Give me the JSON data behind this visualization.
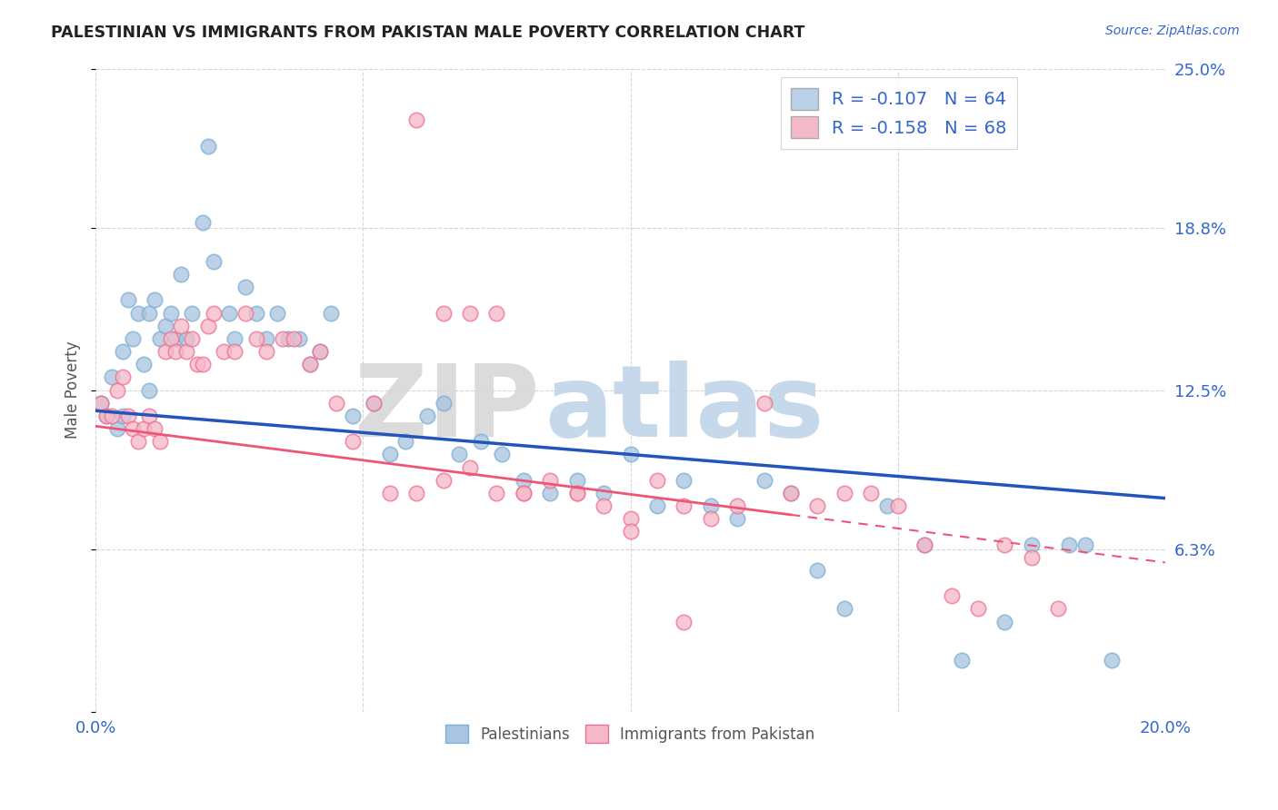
{
  "title": "PALESTINIAN VS IMMIGRANTS FROM PAKISTAN MALE POVERTY CORRELATION CHART",
  "source": "Source: ZipAtlas.com",
  "ylabel": "Male Poverty",
  "xlim": [
    0.0,
    0.2
  ],
  "ylim": [
    0.0,
    0.25
  ],
  "xticks": [
    0.0,
    0.05,
    0.1,
    0.15,
    0.2
  ],
  "xticklabels": [
    "0.0%",
    "",
    "",
    "",
    "20.0%"
  ],
  "yticks": [
    0.0,
    0.063,
    0.125,
    0.188,
    0.25
  ],
  "yticklabels": [
    "",
    "6.3%",
    "12.5%",
    "18.8%",
    "25.0%"
  ],
  "legend_r1": "R = -0.107   N = 64",
  "legend_r2": "R = -0.158   N = 68",
  "series1_color": "#a8c4e0",
  "series2_color": "#f5b8c8",
  "series1_edge": "#7bafd4",
  "series2_edge": "#f07090",
  "trendline1_color": "#2255bb",
  "trendline2_color": "#ee5577",
  "watermark_zip": "ZIP",
  "watermark_atlas": "atlas",
  "legend1_face": "#b8d0e8",
  "legend2_face": "#f5b8c8",
  "palestinians_x": [
    0.001,
    0.002,
    0.003,
    0.004,
    0.005,
    0.005,
    0.006,
    0.007,
    0.008,
    0.009,
    0.01,
    0.01,
    0.011,
    0.012,
    0.013,
    0.014,
    0.015,
    0.016,
    0.017,
    0.018,
    0.02,
    0.021,
    0.022,
    0.025,
    0.026,
    0.028,
    0.03,
    0.032,
    0.034,
    0.036,
    0.038,
    0.04,
    0.042,
    0.044,
    0.048,
    0.052,
    0.055,
    0.058,
    0.062,
    0.065,
    0.068,
    0.072,
    0.076,
    0.08,
    0.085,
    0.09,
    0.095,
    0.1,
    0.105,
    0.11,
    0.115,
    0.12,
    0.125,
    0.13,
    0.135,
    0.14,
    0.148,
    0.155,
    0.162,
    0.17,
    0.175,
    0.182,
    0.185,
    0.19
  ],
  "palestinians_y": [
    0.12,
    0.115,
    0.13,
    0.11,
    0.115,
    0.14,
    0.16,
    0.145,
    0.155,
    0.135,
    0.125,
    0.155,
    0.16,
    0.145,
    0.15,
    0.155,
    0.145,
    0.17,
    0.145,
    0.155,
    0.19,
    0.22,
    0.175,
    0.155,
    0.145,
    0.165,
    0.155,
    0.145,
    0.155,
    0.145,
    0.145,
    0.135,
    0.14,
    0.155,
    0.115,
    0.12,
    0.1,
    0.105,
    0.115,
    0.12,
    0.1,
    0.105,
    0.1,
    0.09,
    0.085,
    0.09,
    0.085,
    0.1,
    0.08,
    0.09,
    0.08,
    0.075,
    0.09,
    0.085,
    0.055,
    0.04,
    0.08,
    0.065,
    0.02,
    0.035,
    0.065,
    0.065,
    0.065,
    0.02
  ],
  "pakistan_x": [
    0.001,
    0.002,
    0.003,
    0.004,
    0.005,
    0.006,
    0.007,
    0.008,
    0.009,
    0.01,
    0.011,
    0.012,
    0.013,
    0.014,
    0.015,
    0.016,
    0.017,
    0.018,
    0.019,
    0.02,
    0.021,
    0.022,
    0.024,
    0.026,
    0.028,
    0.03,
    0.032,
    0.035,
    0.037,
    0.04,
    0.042,
    0.045,
    0.048,
    0.052,
    0.055,
    0.06,
    0.065,
    0.07,
    0.075,
    0.08,
    0.085,
    0.09,
    0.095,
    0.1,
    0.105,
    0.11,
    0.115,
    0.12,
    0.125,
    0.13,
    0.135,
    0.14,
    0.145,
    0.15,
    0.155,
    0.16,
    0.165,
    0.17,
    0.175,
    0.18,
    0.06,
    0.065,
    0.07,
    0.075,
    0.08,
    0.09,
    0.1,
    0.11
  ],
  "pakistan_y": [
    0.12,
    0.115,
    0.115,
    0.125,
    0.13,
    0.115,
    0.11,
    0.105,
    0.11,
    0.115,
    0.11,
    0.105,
    0.14,
    0.145,
    0.14,
    0.15,
    0.14,
    0.145,
    0.135,
    0.135,
    0.15,
    0.155,
    0.14,
    0.14,
    0.155,
    0.145,
    0.14,
    0.145,
    0.145,
    0.135,
    0.14,
    0.12,
    0.105,
    0.12,
    0.085,
    0.085,
    0.09,
    0.095,
    0.085,
    0.085,
    0.09,
    0.085,
    0.08,
    0.075,
    0.09,
    0.08,
    0.075,
    0.08,
    0.12,
    0.085,
    0.08,
    0.085,
    0.085,
    0.08,
    0.065,
    0.045,
    0.04,
    0.065,
    0.06,
    0.04,
    0.23,
    0.155,
    0.155,
    0.155,
    0.085,
    0.085,
    0.07,
    0.035
  ],
  "trendline1_x0": 0.0,
  "trendline1_y0": 0.117,
  "trendline1_x1": 0.2,
  "trendline1_y1": 0.083,
  "trendline2_x0": 0.0,
  "trendline2_y0": 0.111,
  "trendline2_x1": 0.2,
  "trendline2_y1": 0.058,
  "trendline2_solid_end": 0.13
}
